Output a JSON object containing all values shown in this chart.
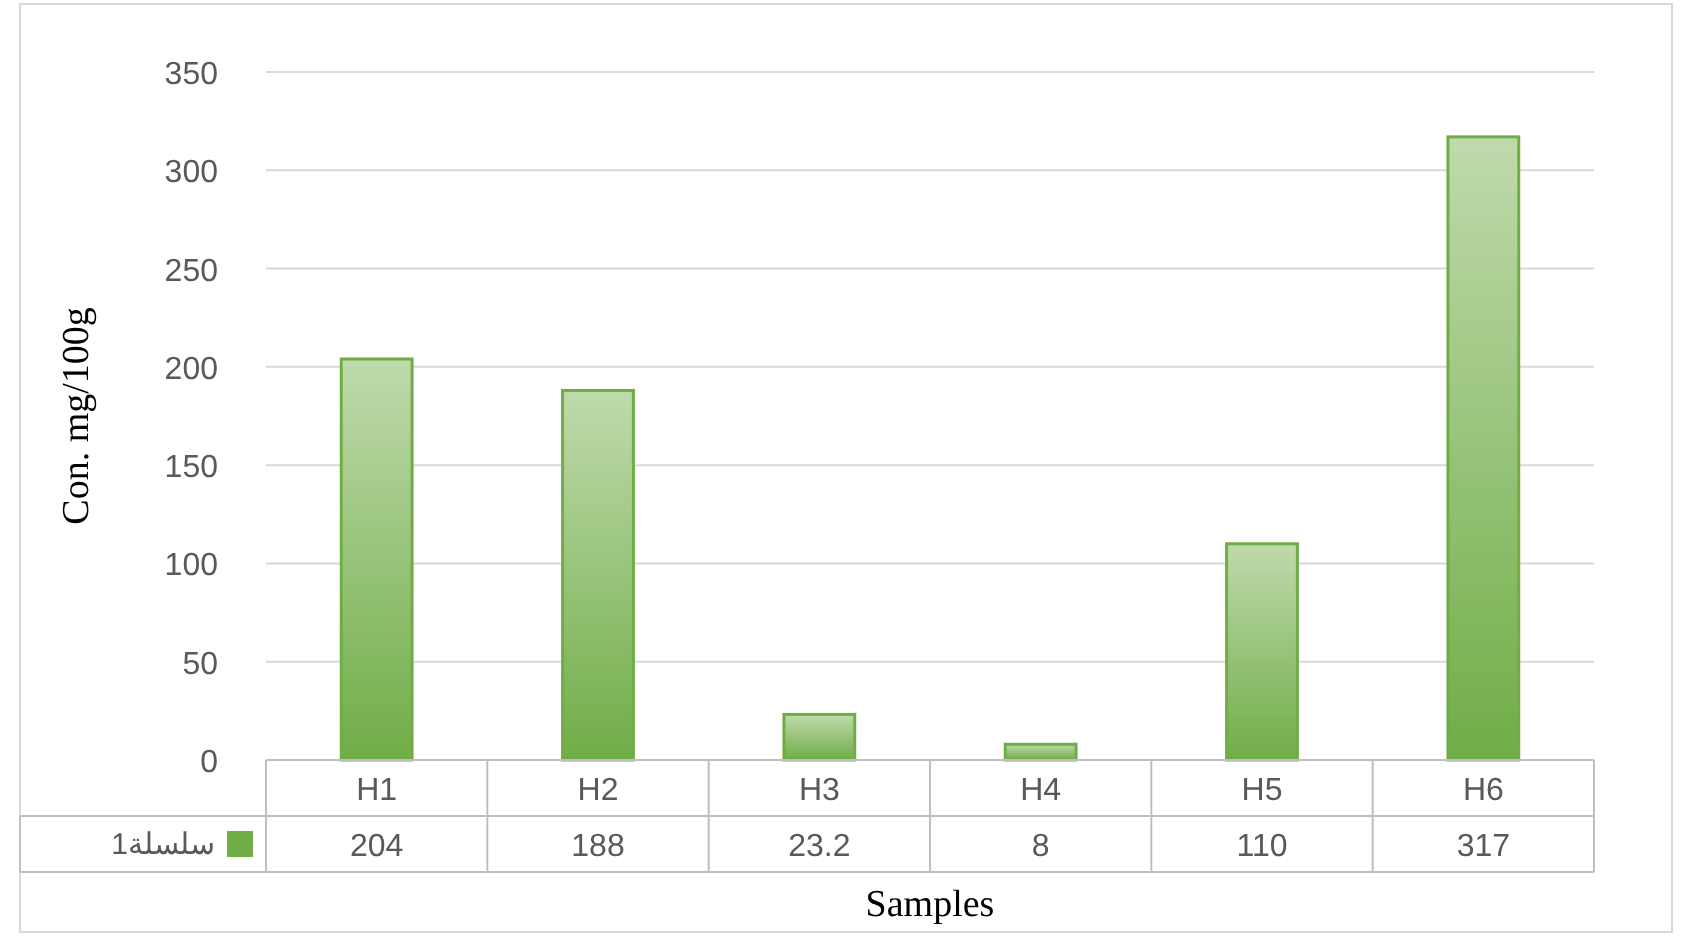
{
  "chart_data": {
    "type": "bar",
    "xlabel": "Samples",
    "ylabel": "Con. mg/100g",
    "categories": [
      "H1",
      "H2",
      "H3",
      "H4",
      "H5",
      "H6"
    ],
    "series": [
      {
        "name": "سلسلة1",
        "color": "#70ad47",
        "values": [
          204,
          188,
          23.2,
          8,
          110,
          317
        ]
      }
    ],
    "ylim": [
      0,
      350
    ],
    "yticks": [
      0,
      50,
      100,
      150,
      200,
      250,
      300,
      350
    ],
    "grid": "y",
    "data_labels": true,
    "legend": "bottom"
  }
}
